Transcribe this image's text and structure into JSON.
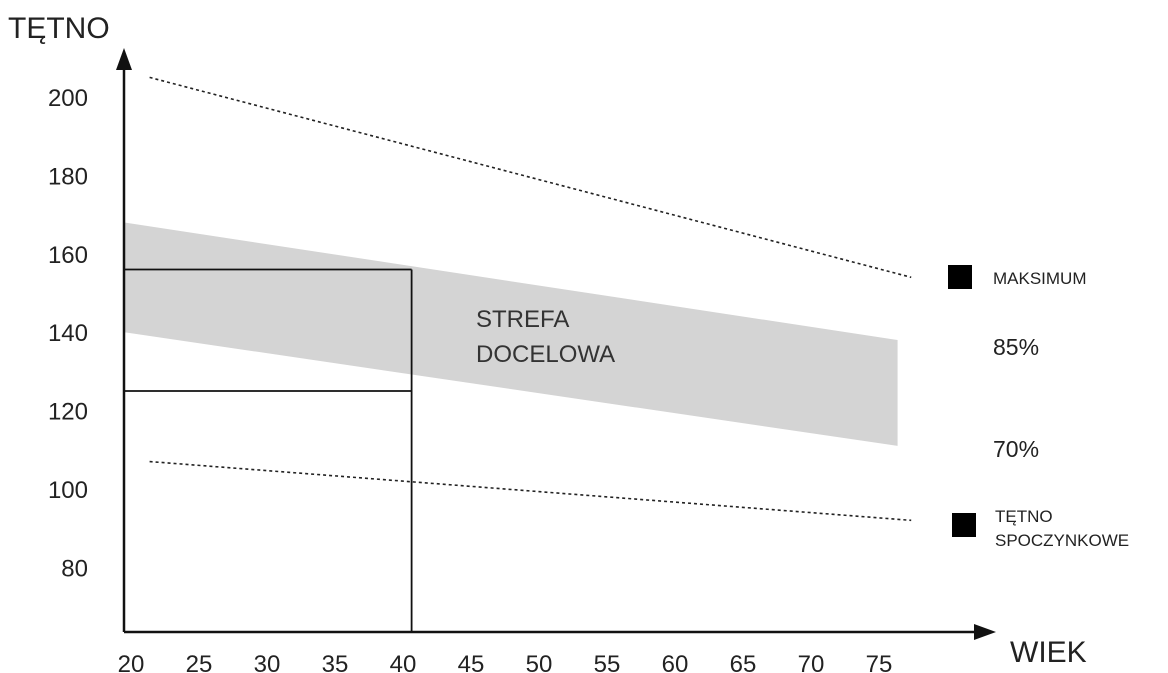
{
  "chart_data": {
    "type": "line",
    "ylabel": "TĘTNO",
    "xlabel": "WIEK",
    "x_ticks": [
      20,
      25,
      30,
      35,
      40,
      45,
      50,
      55,
      60,
      65,
      70,
      75
    ],
    "y_ticks": [
      80,
      100,
      120,
      140,
      160,
      180,
      200
    ],
    "xlim": [
      20,
      80
    ],
    "ylim": [
      63,
      215
    ],
    "series": [
      {
        "name": "MAKSIMUM",
        "style": "dotted",
        "x": [
          21,
          77
        ],
        "y": [
          205,
          154
        ]
      },
      {
        "name": "TĘTNO SPOCZYNKOWE",
        "style": "dotted",
        "x": [
          21,
          77
        ],
        "y": [
          107,
          92
        ]
      }
    ],
    "band": {
      "x": [
        20,
        76
      ],
      "upper": [
        168,
        138
      ],
      "lower": [
        140,
        111
      ]
    },
    "upper_band_label": "85%",
    "lower_band_label": "70%",
    "zone_label_line1": "STREFA",
    "zone_label_line2": "DOCELOWA",
    "reference_box": {
      "x": [
        20,
        41
      ],
      "y_top": 156,
      "y_bottom": 125
    },
    "legend_max_label": "MAKSIMUM",
    "legend_rest_label_line1": "TĘTNO",
    "legend_rest_label_line2": "SPOCZYNKOWE",
    "colors": {
      "band": "#d4d4d4",
      "axis": "#111111",
      "marker": "#000000"
    },
    "grid": false
  }
}
